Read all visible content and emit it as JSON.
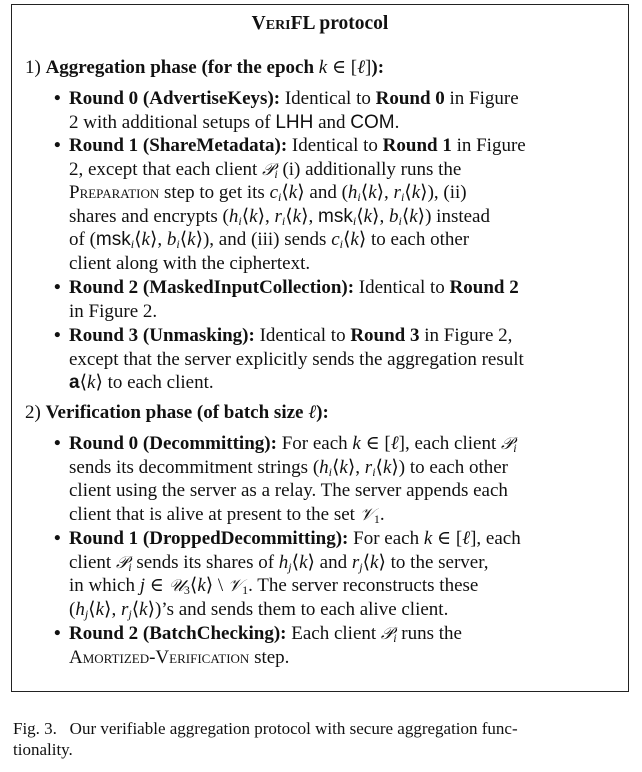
{
  "box": {
    "title_prefix": "Veri",
    "title_suffix": "FL protocol"
  },
  "phase1": {
    "number": "1)",
    "heading": "Aggregation phase (for the epoch k ∈ [ℓ]):",
    "items": [
      {
        "lines": [
          "Round 0 (AdvertiseKeys): Identical to Round 0 in Figure",
          "2 with additional setups of LHH and COM."
        ]
      },
      {
        "lines": [
          "Round 1 (ShareMetadata): Identical to Round 1 in Figure",
          "2, except that each client 𝒫ᵢ (i) additionally runs the",
          "Preparation step to get its cᵢ⟨k⟩ and (hᵢ⟨k⟩, rᵢ⟨k⟩), (ii)",
          "shares and encrypts (hᵢ⟨k⟩, rᵢ⟨k⟩, mskᵢ⟨k⟩, bᵢ⟨k⟩) instead",
          "of (mskᵢ⟨k⟩, bᵢ⟨k⟩), and (iii) sends cᵢ⟨k⟩ to each other",
          "client along with the ciphertext."
        ]
      },
      {
        "lines": [
          "Round 2 (MaskedInputCollection): Identical to Round 2",
          "in Figure 2."
        ]
      },
      {
        "lines": [
          "Round 3 (Unmasking): Identical to Round 3 in Figure 2,",
          "except that the server explicitly sends the aggregation result",
          "a⟨k⟩ to each client."
        ]
      }
    ]
  },
  "phase2": {
    "number": "2)",
    "heading": "Verification phase (of batch size ℓ):",
    "items": [
      {
        "lines": [
          "Round 0 (Decommitting): For each k ∈ [ℓ], each client 𝒫ᵢ",
          "sends its decommitment strings (hᵢ⟨k⟩, rᵢ⟨k⟩) to each other",
          "client using the server as a relay. The server appends each",
          "client that is alive at present to the set 𝒱₁."
        ]
      },
      {
        "lines": [
          "Round 1 (DroppedDecommitting): For each k ∈ [ℓ], each",
          "client 𝒫ᵢ sends its shares of hⱼ⟨k⟩ and rⱼ⟨k⟩ to the server,",
          "in which j ∈ 𝒰₃⟨k⟩ \\ 𝒱₁. The server reconstructs these",
          "(hⱼ⟨k⟩, rⱼ⟨k⟩)’s and sends them to each alive client."
        ]
      },
      {
        "lines": [
          "Round 2 (BatchChecking): Each client 𝒫ᵢ runs the",
          "Amortized-Verification step."
        ]
      }
    ]
  },
  "caption": {
    "lines": [
      "Fig. 3.   Our verifiable aggregation protocol with secure aggregation func-",
      "tionality."
    ]
  }
}
